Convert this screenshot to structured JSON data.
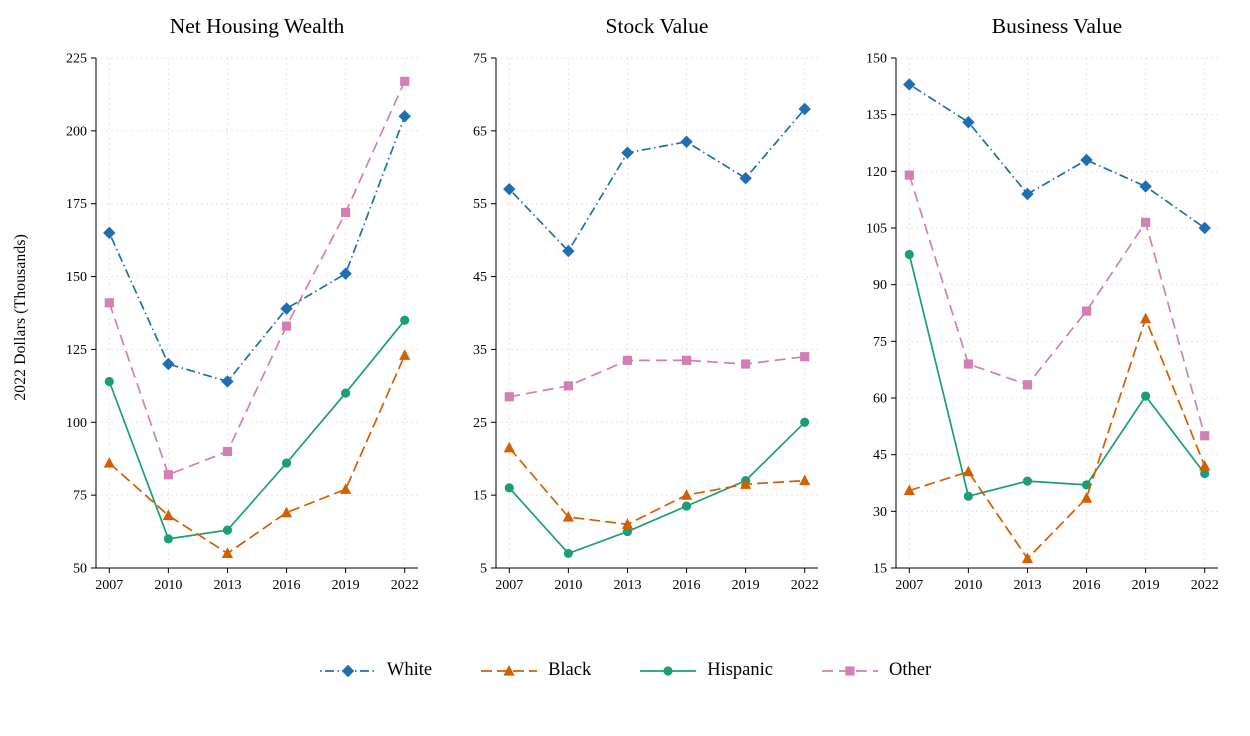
{
  "figure": {
    "ylabel": "2022 Dollars (Thousands)"
  },
  "chart_data": [
    {
      "type": "line",
      "title": "Net Housing Wealth",
      "x": [
        2007,
        2010,
        2013,
        2016,
        2019,
        2022
      ],
      "ylim": [
        50,
        225
      ],
      "yticks": [
        50,
        75,
        100,
        125,
        150,
        175,
        200,
        225
      ],
      "grid": true,
      "series": [
        {
          "name": "White",
          "values": [
            165,
            120,
            114,
            139,
            151,
            205
          ]
        },
        {
          "name": "Black",
          "values": [
            86,
            68,
            55,
            69,
            77,
            123
          ]
        },
        {
          "name": "Hispanic",
          "values": [
            114,
            60,
            63,
            86,
            110,
            135
          ]
        },
        {
          "name": "Other",
          "values": [
            141,
            82,
            90,
            133,
            172,
            217
          ]
        }
      ]
    },
    {
      "type": "line",
      "title": "Stock Value",
      "x": [
        2007,
        2010,
        2013,
        2016,
        2019,
        2022
      ],
      "ylim": [
        5,
        75
      ],
      "yticks": [
        5,
        15,
        25,
        35,
        45,
        55,
        65,
        75
      ],
      "grid": true,
      "series": [
        {
          "name": "White",
          "values": [
            57,
            48.5,
            62,
            63.5,
            58.5,
            68
          ]
        },
        {
          "name": "Black",
          "values": [
            21.5,
            12,
            11,
            15,
            16.5,
            17
          ]
        },
        {
          "name": "Hispanic",
          "values": [
            16,
            7,
            10,
            13.5,
            17,
            25
          ]
        },
        {
          "name": "Other",
          "values": [
            28.5,
            30,
            33.5,
            33.5,
            33,
            34
          ]
        }
      ]
    },
    {
      "type": "line",
      "title": "Business Value",
      "x": [
        2007,
        2010,
        2013,
        2016,
        2019,
        2022
      ],
      "ylim": [
        15,
        150
      ],
      "yticks": [
        15,
        30,
        45,
        60,
        75,
        90,
        105,
        120,
        135,
        150
      ],
      "grid": true,
      "series": [
        {
          "name": "White",
          "values": [
            143,
            133,
            114,
            123,
            116,
            105
          ]
        },
        {
          "name": "Black",
          "values": [
            35.5,
            40.5,
            17.5,
            33.5,
            81,
            42
          ]
        },
        {
          "name": "Hispanic",
          "values": [
            98,
            34,
            38,
            37,
            60.5,
            40
          ]
        },
        {
          "name": "Other",
          "values": [
            119,
            69,
            63.5,
            83,
            106.5,
            50
          ]
        }
      ]
    }
  ],
  "legend": {
    "items": [
      "White",
      "Black",
      "Hispanic",
      "Other"
    ],
    "position": "bottom-center"
  },
  "series_styles": {
    "White": {
      "color": "#1f6eb4",
      "marker": "diamond",
      "dash": "1.5 3.5 9 3.5"
    },
    "Black": {
      "color": "#d55e00",
      "marker": "triangle",
      "dash": "11 5"
    },
    "Hispanic": {
      "color": "#1b9e77",
      "marker": "circle",
      "dash": ""
    },
    "Other": {
      "color": "#d37fb3",
      "marker": "square",
      "dash": "11 6"
    }
  },
  "colors": {
    "background": "#ffffff",
    "grid": "#e4e4e4",
    "axis": "#000000"
  }
}
